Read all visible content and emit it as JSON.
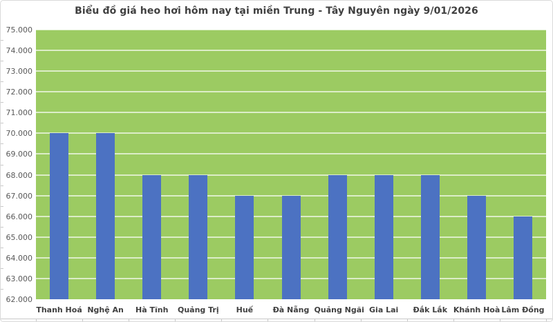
{
  "chart_data": {
    "type": "bar",
    "title": "Biểu đồ giá heo hơi hôm nay tại miền Trung - Tây Nguyên ngày 9/01/2026",
    "categories": [
      "Thanh Hoá",
      "Nghệ An",
      "Hà Tĩnh",
      "Quảng Trị",
      "Huế",
      "Đà Nẵng",
      "Quảng Ngãi",
      "Gia Lai",
      "Đắk Lắk",
      "Khánh Hoà",
      "Lâm Đồng"
    ],
    "values": [
      70000,
      70000,
      68000,
      68000,
      67000,
      67000,
      68000,
      68000,
      68000,
      67000,
      66000
    ],
    "xlabel": "",
    "ylabel": "",
    "ylim": [
      62000,
      75000
    ],
    "ytick_step": 1000,
    "y_tick_labels": [
      "75.000",
      "74.000",
      "73.000",
      "72.000",
      "71.000",
      "70.000",
      "69.000",
      "68.000",
      "67.000",
      "66.000",
      "65.000",
      "64.000",
      "63.000",
      "62.000"
    ],
    "grid": true,
    "legend": false,
    "colors": {
      "bar": "#4C72C2",
      "plot_background": "#9CCB62",
      "gridline": "#D9D9D9",
      "title_text": "#404040",
      "axis_text": "#595959",
      "axis_line": "#C8C8C8"
    }
  }
}
